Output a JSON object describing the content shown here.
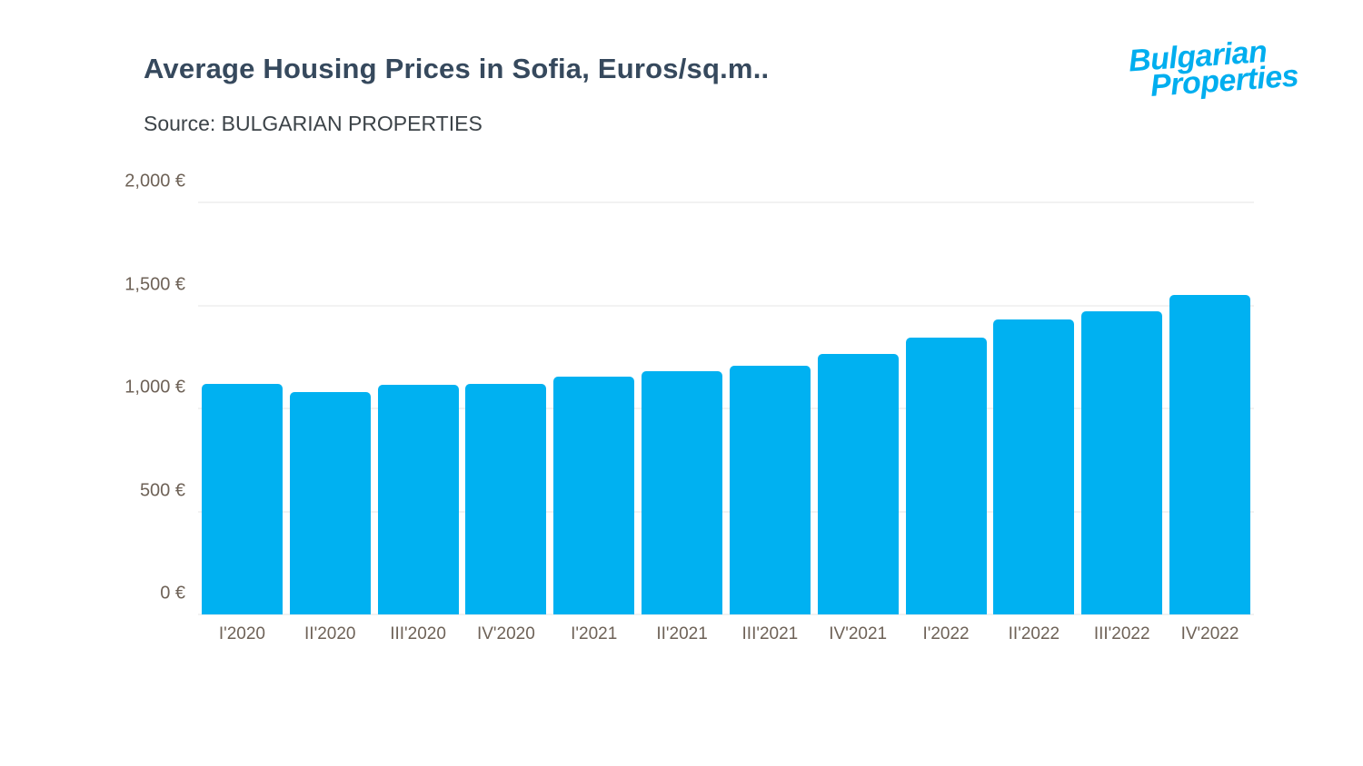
{
  "header": {
    "title": "Average Housing Prices in Sofia, Euros/sq.m..",
    "source": "Source: BULGARIAN PROPERTIES"
  },
  "logo": {
    "line1": "Bulgarian",
    "line2": "Properties",
    "color": "#00aeef"
  },
  "chart_data": {
    "type": "bar",
    "title": "Average Housing Prices in Sofia, Euros/sq.m..",
    "source": "Source: BULGARIAN PROPERTIES",
    "categories": [
      "I'2020",
      "II'2020",
      "III'2020",
      "IV'2020",
      "I'2021",
      "II'2021",
      "III'2021",
      "IV'2021",
      "I'2022",
      "II'2022",
      "III'2022",
      "IV'2022"
    ],
    "values": [
      1120,
      1080,
      1115,
      1120,
      1155,
      1180,
      1205,
      1265,
      1345,
      1430,
      1470,
      1550
    ],
    "unit": "Euros per sq.m",
    "xlabel": "",
    "ylabel": "",
    "ylim": [
      0,
      2000
    ],
    "yticks": [
      0,
      500,
      1000,
      1500,
      2000
    ],
    "ytick_labels": [
      "0 €",
      "500 €",
      "1,000 €",
      "1,500 €",
      "2,000 €"
    ],
    "bar_color": "#00b1f1",
    "grid": true,
    "legend": "none"
  }
}
